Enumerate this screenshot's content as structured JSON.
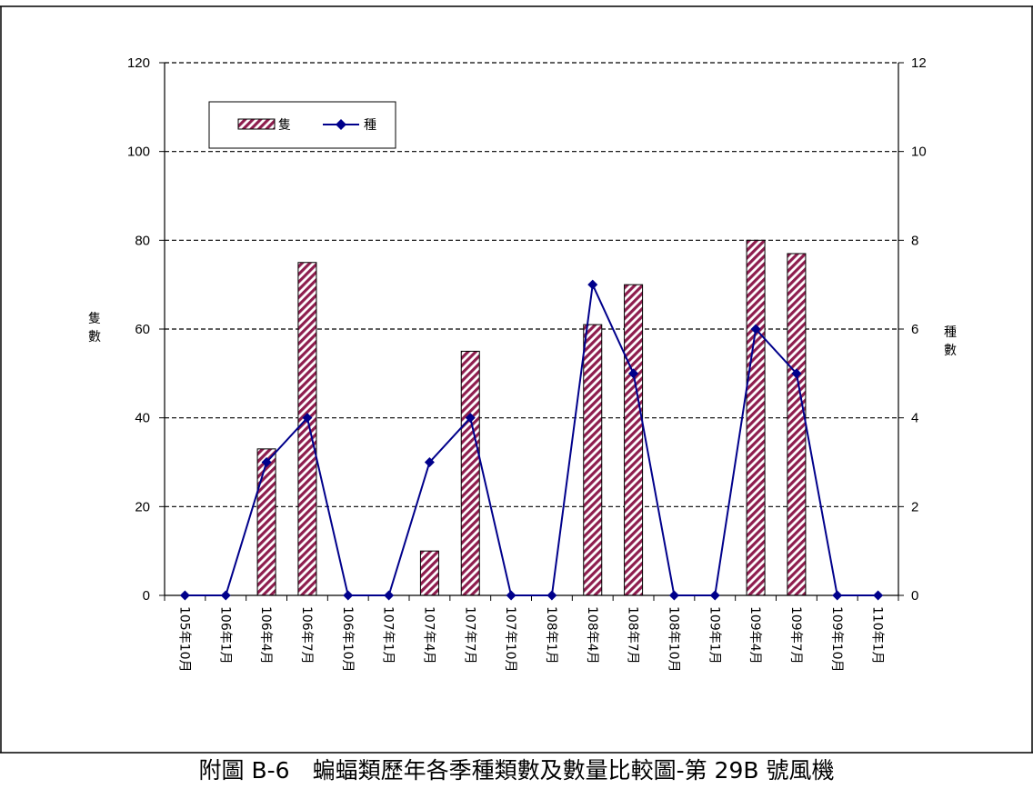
{
  "caption": "附圖 B-6　蝙蝠類歷年各季種類數及數量比較圖-第 29B 號風機",
  "chart_data": {
    "type": "bar",
    "categories": [
      "105年10月",
      "106年1月",
      "106年4月",
      "106年7月",
      "106年10月",
      "107年1月",
      "107年4月",
      "107年7月",
      "107年10月",
      "108年1月",
      "108年4月",
      "108年7月",
      "108年10月",
      "109年1月",
      "109年4月",
      "109年7月",
      "109年10月",
      "110年1月"
    ],
    "series": [
      {
        "name": "隻",
        "type": "bar",
        "axis": "left",
        "values": [
          0,
          0,
          33,
          75,
          0,
          0,
          10,
          55,
          0,
          0,
          61,
          70,
          0,
          0,
          80,
          77,
          0,
          0
        ]
      },
      {
        "name": "種",
        "type": "line",
        "axis": "right",
        "values": [
          0,
          0,
          3,
          4,
          0,
          0,
          3,
          4,
          0,
          0,
          7,
          5,
          0,
          0,
          6,
          5,
          0,
          0
        ]
      }
    ],
    "ylabel_left": "隻數",
    "ylabel_right": "種數",
    "ylim_left": [
      0,
      120
    ],
    "ylim_right": [
      0,
      12
    ],
    "yticks_left": [
      0,
      20,
      40,
      60,
      80,
      100,
      120
    ],
    "yticks_right": [
      0,
      2,
      4,
      6,
      8,
      10,
      12
    ],
    "grid": "horizontal dashed",
    "legend": "top-left",
    "colors": {
      "bar_fill": "#8e1d4e",
      "bar_stripe": "#ffffff",
      "line": "#00008b",
      "grid": "#000000"
    }
  }
}
